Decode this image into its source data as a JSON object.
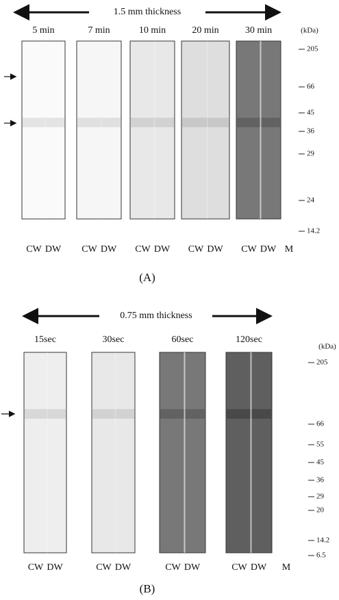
{
  "panels": [
    {
      "thickness": "1.5 mm thickness",
      "label": "(A)",
      "unit": "(kDa)",
      "marker_lane": "M",
      "gels": [
        {
          "time": "5 min",
          "lanes": [
            "CW",
            "DW"
          ]
        },
        {
          "time": "7 min",
          "lanes": [
            "CW",
            "DW"
          ]
        },
        {
          "time": "10 min",
          "lanes": [
            "CW",
            "DW"
          ]
        },
        {
          "time": "20 min",
          "lanes": [
            "CW",
            "DW"
          ]
        },
        {
          "time": "30 min",
          "lanes": [
            "CW",
            "DW"
          ]
        }
      ],
      "markers": [
        "205",
        "66",
        "45",
        "36",
        "29",
        "24",
        "14.2"
      ]
    },
    {
      "thickness": "0.75 mm thickness",
      "label": "(B)",
      "unit": "(kDa)",
      "marker_lane": "M",
      "gels": [
        {
          "time": "15sec",
          "lanes": [
            "CW",
            "DW"
          ]
        },
        {
          "time": "30sec",
          "lanes": [
            "CW",
            "DW"
          ]
        },
        {
          "time": "60sec",
          "lanes": [
            "CW",
            "DW"
          ]
        },
        {
          "time": "120sec",
          "lanes": [
            "CW",
            "DW"
          ]
        }
      ],
      "markers": [
        "205",
        "66",
        "55",
        "45",
        "36",
        "29",
        "20",
        "14.2",
        "6.5"
      ]
    }
  ]
}
